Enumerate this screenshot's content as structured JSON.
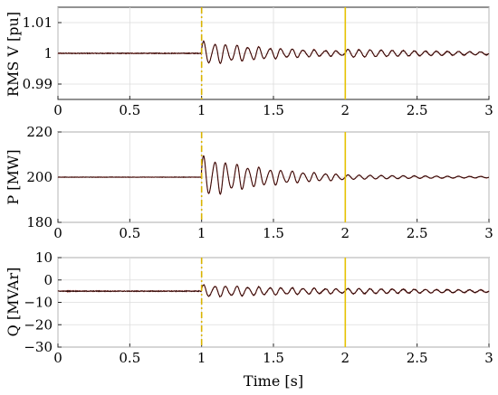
{
  "chart_data": [
    {
      "type": "line",
      "ylabel": "RMS V [pu]",
      "xlabel": "",
      "xlim": [
        0,
        3
      ],
      "ylim": [
        0.985,
        1.015
      ],
      "xticks": [
        "0",
        "0.5",
        "1",
        "1.5",
        "2",
        "2.5",
        "3"
      ],
      "yticks": [
        "0.99",
        "1",
        "1.01"
      ],
      "yticks_values": [
        0.99,
        1.0,
        1.01
      ],
      "grid": true,
      "signal": {
        "base": 1.0,
        "pre_noise": 0.0002,
        "osc1_amp": 0.0035,
        "osc1_decay": 1.6,
        "osc2_amp": 0.0013,
        "osc2_decay": 1.0,
        "freq_hz": 13
      },
      "markers": [
        {
          "x": 1,
          "style": "dash-dot",
          "color": "#d9b300"
        },
        {
          "x": 2,
          "style": "solid",
          "color": "#e6c200"
        }
      ]
    },
    {
      "type": "line",
      "ylabel": "P [MW]",
      "xlabel": "",
      "xlim": [
        0,
        3
      ],
      "ylim": [
        180,
        220
      ],
      "xticks": [
        "0",
        "0.5",
        "1",
        "1.5",
        "2",
        "2.5",
        "3"
      ],
      "yticks": [
        "180",
        "200",
        "220"
      ],
      "yticks_values": [
        180,
        200,
        220
      ],
      "grid": true,
      "signal": {
        "base": 200,
        "pre_noise": 0.15,
        "osc1_amp": 8.5,
        "osc1_decay": 2.0,
        "osc2_amp": 1.0,
        "osc2_decay": 1.2,
        "freq_hz": 13
      },
      "markers": [
        {
          "x": 1,
          "style": "dash-dot",
          "color": "#d9b300"
        },
        {
          "x": 2,
          "style": "solid",
          "color": "#e6c200"
        }
      ]
    },
    {
      "type": "line",
      "ylabel": "Q [MVAr]",
      "xlabel": "Time [s]",
      "xlim": [
        0,
        3
      ],
      "ylim": [
        -30,
        10
      ],
      "xticks": [
        "0",
        "0.5",
        "1",
        "1.5",
        "2",
        "2.5",
        "3"
      ],
      "yticks": [
        "−30",
        "−20",
        "−10",
        "0",
        "10"
      ],
      "yticks_values": [
        -30,
        -20,
        -10,
        0,
        10
      ],
      "grid": true,
      "signal": {
        "base": -5,
        "pre_noise": 0.3,
        "osc1_amp": 2.5,
        "osc1_decay": 1.0,
        "osc2_amp": 1.2,
        "osc2_decay": 0.8,
        "freq_hz": 13
      },
      "markers": [
        {
          "x": 1,
          "style": "dash-dot",
          "color": "#d9b300"
        },
        {
          "x": 2,
          "style": "solid",
          "color": "#e6c200"
        }
      ]
    }
  ]
}
